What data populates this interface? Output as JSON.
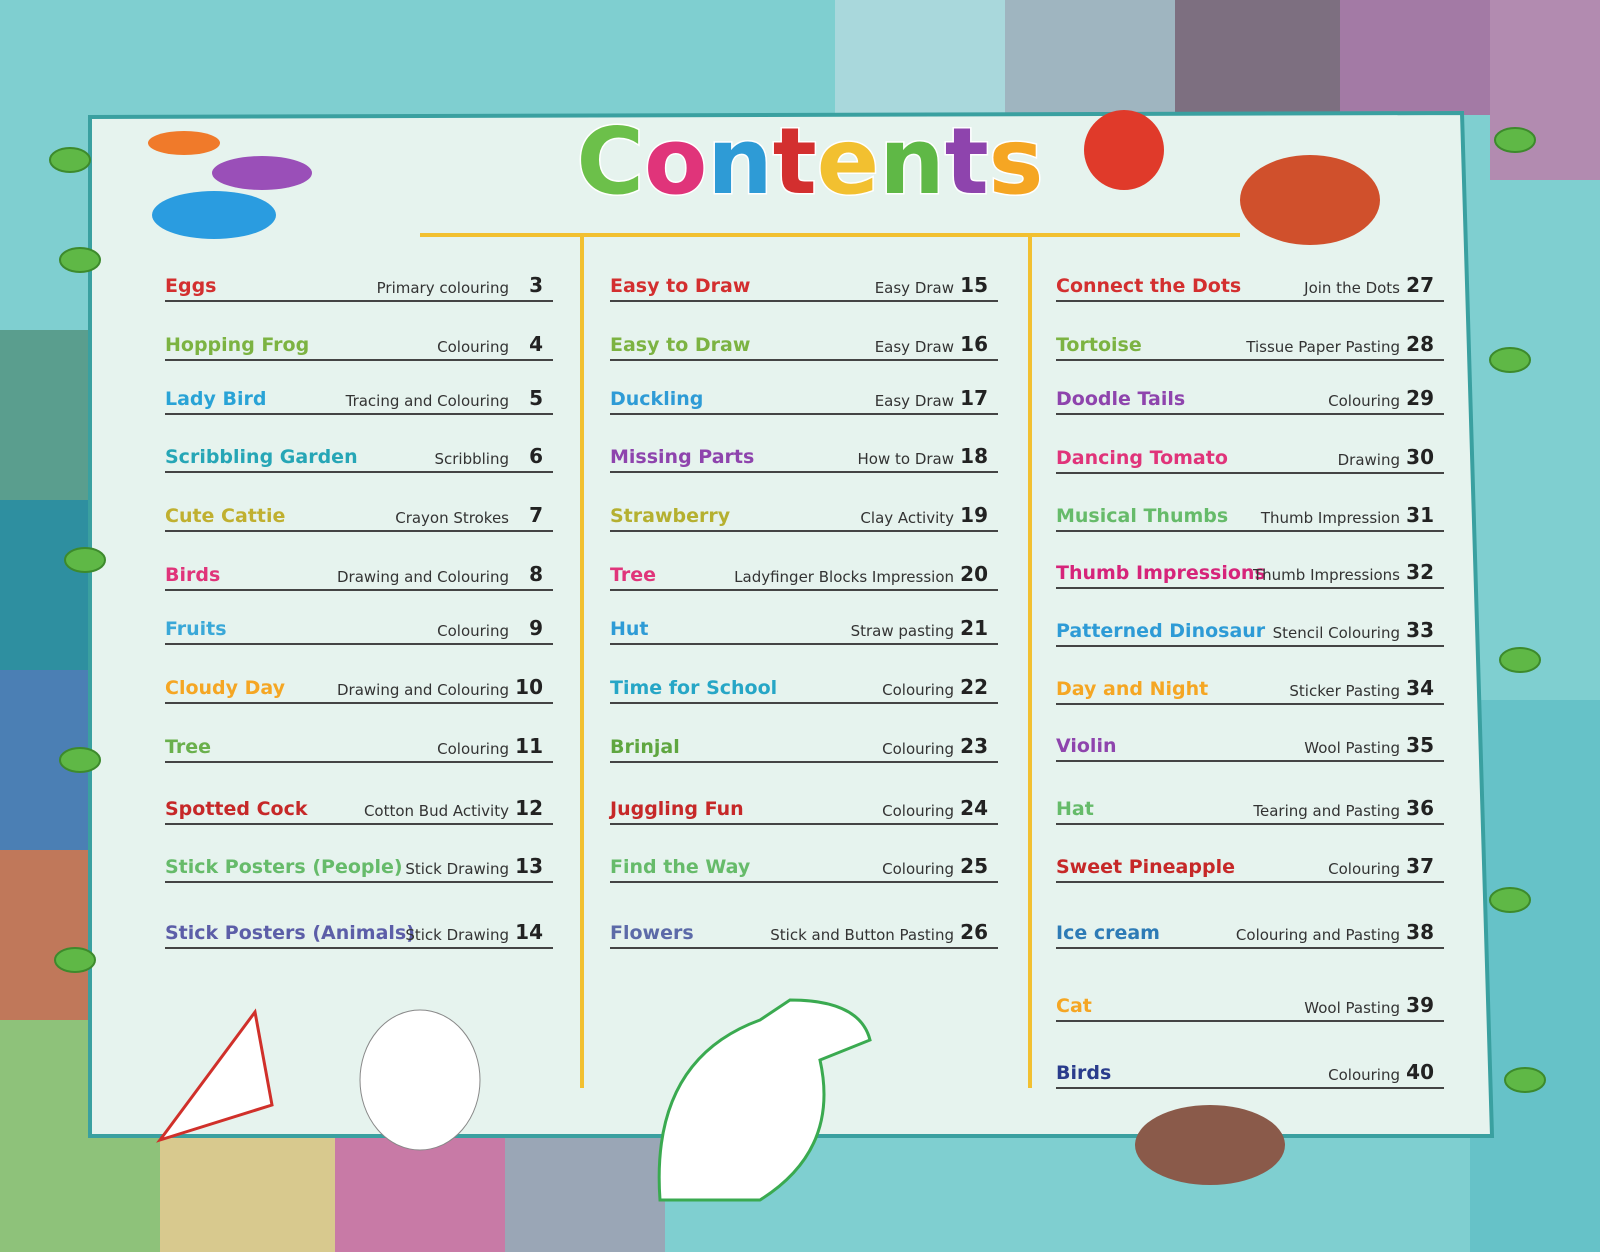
{
  "title": "Contents",
  "columns": [
    {
      "entries": [
        {
          "title": "Eggs",
          "activity": "Primary colouring",
          "page": 3,
          "color": "#d32f2f"
        },
        {
          "title": "Hopping Frog",
          "activity": "Colouring",
          "page": 4,
          "color": "#7cb342"
        },
        {
          "title": "Lady Bird",
          "activity": "Tracing and Colouring",
          "page": 5,
          "color": "#29a3d6"
        },
        {
          "title": "Scribbling Garden",
          "activity": "Scribbling",
          "page": 6,
          "color": "#26a6b6"
        },
        {
          "title": "Cute Cattie",
          "activity": "Crayon Strokes",
          "page": 7,
          "color": "#c0b030"
        },
        {
          "title": "Birds",
          "activity": "Drawing and Colouring",
          "page": 8,
          "color": "#e0347a"
        },
        {
          "title": "Fruits",
          "activity": "Colouring",
          "page": 9,
          "color": "#3aa8d8"
        },
        {
          "title": "Cloudy Day",
          "activity": "Drawing and Colouring",
          "page": 10,
          "color": "#f5a623"
        },
        {
          "title": "Tree",
          "activity": "Colouring",
          "page": 11,
          "color": "#6ab04c"
        },
        {
          "title": "Spotted Cock",
          "activity": "Cotton Bud Activity",
          "page": 12,
          "color": "#c62828"
        },
        {
          "title": "Stick Posters (People)",
          "activity": "Stick Drawing",
          "page": 13,
          "color": "#66bb6a"
        },
        {
          "title": "Stick Posters (Animals)",
          "activity": "Stick Drawing",
          "page": 14,
          "color": "#5c5ea8"
        }
      ]
    },
    {
      "entries": [
        {
          "title": "Easy to Draw",
          "activity": "Easy Draw",
          "page": 15,
          "color": "#d32f2f"
        },
        {
          "title": "Easy to Draw",
          "activity": "Easy Draw",
          "page": 16,
          "color": "#7cb342"
        },
        {
          "title": "Duckling",
          "activity": "Easy Draw",
          "page": 17,
          "color": "#2e9bd6"
        },
        {
          "title": "Missing Parts",
          "activity": "How to Draw",
          "page": 18,
          "color": "#8e44ad"
        },
        {
          "title": "Strawberry",
          "activity": "Clay Activity",
          "page": 19,
          "color": "#b5b030"
        },
        {
          "title": "Tree",
          "activity": "Ladyfinger Blocks Impression",
          "page": 20,
          "color": "#e0347a"
        },
        {
          "title": "Hut",
          "activity": "Straw pasting",
          "page": 21,
          "color": "#2e9bd6"
        },
        {
          "title": "Time for School",
          "activity": "Colouring",
          "page": 22,
          "color": "#26a6c6"
        },
        {
          "title": "Brinjal",
          "activity": "Colouring",
          "page": 23,
          "color": "#5fa640"
        },
        {
          "title": "Juggling Fun",
          "activity": "Colouring",
          "page": 24,
          "color": "#c62828"
        },
        {
          "title": "Find the Way",
          "activity": "Colouring",
          "page": 25,
          "color": "#66bb6a"
        },
        {
          "title": "Flowers",
          "activity": "Stick and Button Pasting",
          "page": 26,
          "color": "#5c6aa8"
        }
      ]
    },
    {
      "entries": [
        {
          "title": "Connect the Dots",
          "activity": "Join the Dots",
          "page": 27,
          "color": "#d32f2f"
        },
        {
          "title": "Tortoise",
          "activity": "Tissue Paper Pasting",
          "page": 28,
          "color": "#7cb342"
        },
        {
          "title": "Doodle Tails",
          "activity": "Colouring",
          "page": 29,
          "color": "#8e44ad"
        },
        {
          "title": "Dancing Tomato",
          "activity": "Drawing",
          "page": 30,
          "color": "#e0347a"
        },
        {
          "title": "Musical Thumbs",
          "activity": "Thumb Impression",
          "page": 31,
          "color": "#66bb6a"
        },
        {
          "title": "Thumb Impressions",
          "activity": "Thumb Impressions",
          "page": 32,
          "color": "#d6247a"
        },
        {
          "title": "Patterned Dinosaur",
          "activity": "Stencil Colouring",
          "page": 33,
          "color": "#2e9bd6"
        },
        {
          "title": "Day and Night",
          "activity": "Sticker Pasting",
          "page": 34,
          "color": "#f5a623"
        },
        {
          "title": "Violin",
          "activity": "Wool Pasting",
          "page": 35,
          "color": "#8e44ad"
        },
        {
          "title": "Hat",
          "activity": "Tearing and Pasting",
          "page": 36,
          "color": "#66bb6a"
        },
        {
          "title": "Sweet Pineapple",
          "activity": "Colouring",
          "page": 37,
          "color": "#c62828"
        },
        {
          "title": "Ice cream",
          "activity": "Colouring and Pasting",
          "page": 38,
          "color": "#2e7bb6"
        },
        {
          "title": "Cat",
          "activity": "Wool Pasting",
          "page": 39,
          "color": "#f5a623"
        },
        {
          "title": "Birds",
          "activity": "Colouring",
          "page": 40,
          "color": "#2a3c8c"
        }
      ]
    }
  ]
}
